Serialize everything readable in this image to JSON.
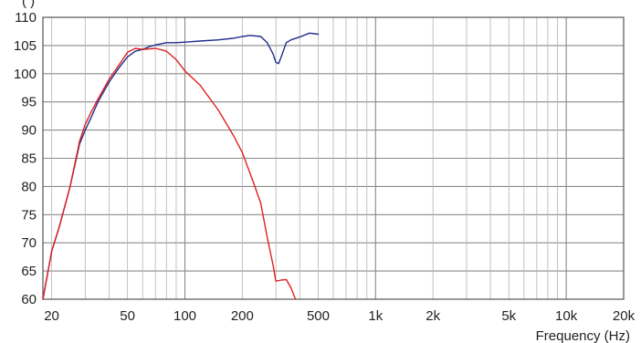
{
  "chart_data": {
    "type": "line",
    "title": "",
    "xlabel": "Frequency  (Hz)",
    "ylabel": "",
    "ylabel_partial": "(  )",
    "x_scale": "log",
    "xlim": [
      18,
      20000
    ],
    "ylim": [
      60,
      110
    ],
    "grid": true,
    "legend": "none",
    "y_ticks": [
      60,
      65,
      70,
      75,
      80,
      85,
      90,
      95,
      100,
      105,
      110
    ],
    "y_tick_labels": [
      "60",
      "65",
      "70",
      "75",
      "80",
      "85",
      "90",
      "95",
      "100",
      "105",
      "110"
    ],
    "x_ticks": [
      20,
      50,
      100,
      200,
      500,
      1000,
      2000,
      5000,
      10000,
      20000
    ],
    "x_tick_labels": [
      "20",
      "50",
      "100",
      "200",
      "500",
      "1k",
      "2k",
      "5k",
      "10k",
      "20k"
    ],
    "series": [
      {
        "color": "#1f2d8a",
        "x": [
          18,
          20,
          22,
          25,
          28,
          30,
          32,
          35,
          40,
          45,
          50,
          55,
          60,
          65,
          70,
          80,
          90,
          100,
          120,
          150,
          180,
          200,
          220,
          250,
          270,
          290,
          300,
          310,
          320,
          340,
          360,
          400,
          450,
          500
        ],
        "y": [
          60,
          68.5,
          73,
          80,
          87.5,
          90,
          92,
          95,
          98.5,
          101,
          103,
          104,
          104.3,
          104.8,
          105.1,
          105.5,
          105.5,
          105.6,
          105.8,
          106,
          106.3,
          106.6,
          106.8,
          106.6,
          105.5,
          103.5,
          102,
          101.8,
          103,
          105.5,
          106,
          106.5,
          107.2,
          107
        ]
      },
      {
        "color": "#e02020",
        "x": [
          18,
          20,
          22,
          25,
          28,
          30,
          32,
          35,
          40,
          45,
          50,
          55,
          60,
          70,
          80,
          90,
          100,
          120,
          150,
          180,
          200,
          230,
          250,
          270,
          290,
          300,
          320,
          340,
          360,
          380
        ],
        "y": [
          60,
          68.5,
          73,
          80,
          88,
          91,
          93,
          95.5,
          99,
          101.5,
          103.8,
          104.5,
          104.3,
          104.5,
          104,
          102.5,
          100.5,
          98,
          93.5,
          89,
          86,
          80.5,
          77,
          71,
          66,
          63.2,
          63.4,
          63.5,
          62,
          60
        ]
      }
    ]
  }
}
